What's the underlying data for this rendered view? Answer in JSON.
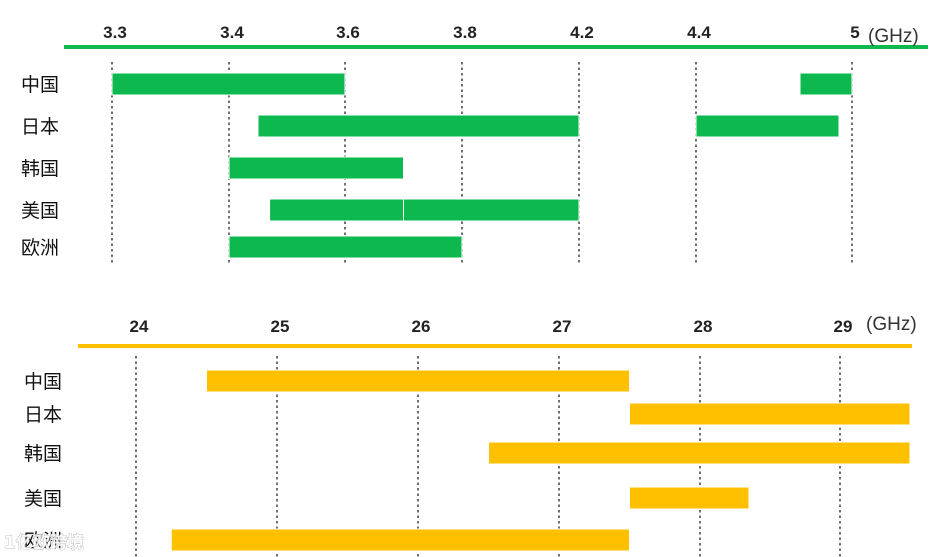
{
  "chart_data": [
    {
      "type": "bar",
      "orientation": "horizontal-range",
      "unit": "(GHz)",
      "x_ticks": [
        "3.3",
        "3.4",
        "3.6",
        "3.8",
        "4.2",
        "4.4",
        "5"
      ],
      "grid": "vertical-dotted",
      "color": "#0DB84E",
      "categories": [
        "中国",
        "日本",
        "韩国",
        "美国",
        "欧洲"
      ],
      "ranges": [
        [
          [
            3.3,
            3.6
          ],
          [
            4.8,
            5.0
          ]
        ],
        [
          [
            3.45,
            4.2
          ],
          [
            4.4,
            4.95
          ]
        ],
        [
          [
            3.4,
            3.7
          ]
        ],
        [
          [
            3.47,
            3.7
          ],
          [
            3.7,
            4.2
          ]
        ],
        [
          [
            3.4,
            3.8
          ]
        ]
      ]
    },
    {
      "type": "bar",
      "orientation": "horizontal-range",
      "unit": "(GHz)",
      "x_ticks": [
        "24",
        "25",
        "26",
        "27",
        "28",
        "29"
      ],
      "grid": "vertical-dotted",
      "color": "#FFC000",
      "categories": [
        "中国",
        "日本",
        "韩国",
        "美国",
        "欧洲"
      ],
      "ranges": [
        [
          [
            24.5,
            27.5
          ]
        ],
        [
          [
            27.5,
            29.5
          ]
        ],
        [
          [
            26.5,
            29.5
          ]
        ],
        [
          [
            27.5,
            28.35
          ]
        ],
        [
          [
            24.25,
            27.5
          ]
        ]
      ]
    }
  ],
  "watermark": "1亿欧跨境"
}
